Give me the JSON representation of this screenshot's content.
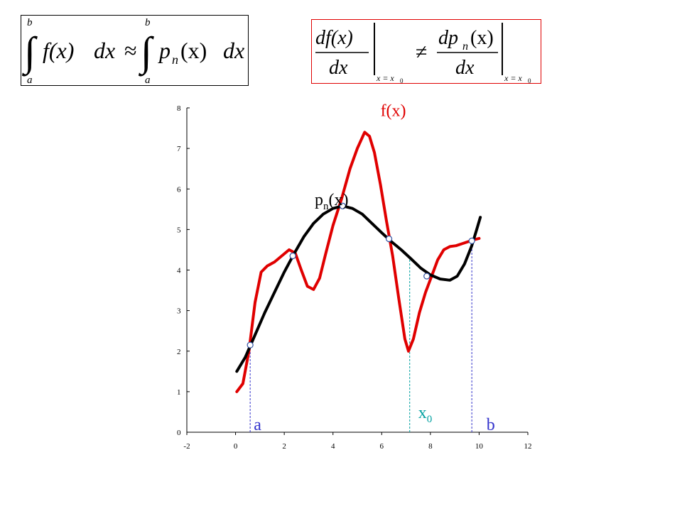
{
  "formulas": {
    "integral": {
      "upper_limit": "b",
      "lower_limit": "a",
      "integrand_left": "f(x)",
      "dx_left": "dx",
      "approx": "≈",
      "integrand_right": "p",
      "integrand_right_sub": "n",
      "integrand_right_arg": "(x)",
      "dx_right": "dx",
      "border_color": "#000000"
    },
    "derivative": {
      "left_num": "df(x)",
      "left_den": "dx",
      "eval_at": "x = x",
      "eval_sub": "0",
      "neq": "≠",
      "right_num_a": "dp",
      "right_num_sub": "n",
      "right_num_b": "(x)",
      "right_den": "dx",
      "border_color": "#e00000"
    }
  },
  "chart_data": {
    "type": "line",
    "title": "",
    "xlabel": "",
    "ylabel": "",
    "xlim": [
      -2,
      12
    ],
    "ylim": [
      0,
      8
    ],
    "x_ticks": [
      -2,
      0,
      2,
      4,
      6,
      8,
      10,
      12
    ],
    "y_ticks": [
      0,
      1,
      2,
      3,
      4,
      5,
      6,
      7,
      8
    ],
    "grid": false,
    "series": [
      {
        "name": "f(x)",
        "color": "#e00000",
        "points": [
          [
            0.05,
            1.0
          ],
          [
            0.3,
            1.2
          ],
          [
            0.55,
            2.0
          ],
          [
            0.8,
            3.2
          ],
          [
            1.05,
            3.95
          ],
          [
            1.3,
            4.1
          ],
          [
            1.6,
            4.2
          ],
          [
            1.9,
            4.35
          ],
          [
            2.2,
            4.5
          ],
          [
            2.45,
            4.42
          ],
          [
            2.7,
            4.0
          ],
          [
            2.95,
            3.6
          ],
          [
            3.2,
            3.52
          ],
          [
            3.45,
            3.8
          ],
          [
            3.7,
            4.4
          ],
          [
            4.0,
            5.1
          ],
          [
            4.35,
            5.75
          ],
          [
            4.7,
            6.5
          ],
          [
            5.0,
            7.0
          ],
          [
            5.3,
            7.4
          ],
          [
            5.5,
            7.3
          ],
          [
            5.7,
            6.9
          ],
          [
            5.95,
            6.1
          ],
          [
            6.2,
            5.2
          ],
          [
            6.45,
            4.35
          ],
          [
            6.7,
            3.3
          ],
          [
            6.95,
            2.3
          ],
          [
            7.1,
            2.0
          ],
          [
            7.3,
            2.3
          ],
          [
            7.55,
            2.95
          ],
          [
            7.8,
            3.45
          ],
          [
            8.05,
            3.85
          ],
          [
            8.3,
            4.25
          ],
          [
            8.55,
            4.5
          ],
          [
            8.8,
            4.58
          ],
          [
            9.05,
            4.6
          ],
          [
            9.3,
            4.65
          ],
          [
            9.55,
            4.7
          ],
          [
            9.8,
            4.75
          ],
          [
            10.0,
            4.78
          ]
        ]
      },
      {
        "name": "p_n(x)",
        "color": "#000000",
        "points": [
          [
            0.05,
            1.5
          ],
          [
            0.4,
            1.85
          ],
          [
            0.8,
            2.4
          ],
          [
            1.2,
            2.95
          ],
          [
            1.6,
            3.45
          ],
          [
            2.0,
            3.95
          ],
          [
            2.4,
            4.4
          ],
          [
            2.8,
            4.82
          ],
          [
            3.2,
            5.15
          ],
          [
            3.6,
            5.38
          ],
          [
            4.0,
            5.52
          ],
          [
            4.4,
            5.58
          ],
          [
            4.8,
            5.52
          ],
          [
            5.2,
            5.38
          ],
          [
            5.6,
            5.15
          ],
          [
            6.0,
            4.92
          ],
          [
            6.4,
            4.7
          ],
          [
            6.8,
            4.5
          ],
          [
            7.2,
            4.28
          ],
          [
            7.6,
            4.05
          ],
          [
            8.0,
            3.88
          ],
          [
            8.4,
            3.78
          ],
          [
            8.8,
            3.75
          ],
          [
            9.1,
            3.85
          ],
          [
            9.4,
            4.15
          ],
          [
            9.7,
            4.6
          ],
          [
            9.9,
            5.0
          ],
          [
            10.05,
            5.3
          ]
        ]
      }
    ],
    "intersections": [
      [
        0.6,
        2.15
      ],
      [
        2.35,
        4.35
      ],
      [
        4.4,
        5.58
      ],
      [
        6.3,
        4.77
      ],
      [
        7.85,
        3.85
      ],
      [
        9.7,
        4.72
      ]
    ],
    "annotations": [
      {
        "text": "f(x)",
        "x": 5.95,
        "y": 7.8,
        "color": "#e00000"
      },
      {
        "text": "p",
        "sub": "n",
        "tail": "(x)",
        "x": 3.25,
        "y": 5.6,
        "color": "#000000"
      },
      {
        "text": "a",
        "x": 0.75,
        "y": 0.05,
        "color": "#3333cc"
      },
      {
        "text": "b",
        "x": 10.3,
        "y": 0.05,
        "color": "#3333cc"
      },
      {
        "text": "x",
        "sub": "0",
        "x": 7.5,
        "y": 0.35,
        "color": "#00a0a0"
      }
    ],
    "markers": [
      {
        "name": "a",
        "x": 0.6,
        "y_top": 2.15,
        "color": "#3333cc"
      },
      {
        "name": "x0",
        "x": 7.15,
        "y_top": 4.28,
        "color": "#00a0a0"
      },
      {
        "name": "b",
        "x": 9.7,
        "y_top": 4.72,
        "color": "#3333cc"
      }
    ]
  }
}
